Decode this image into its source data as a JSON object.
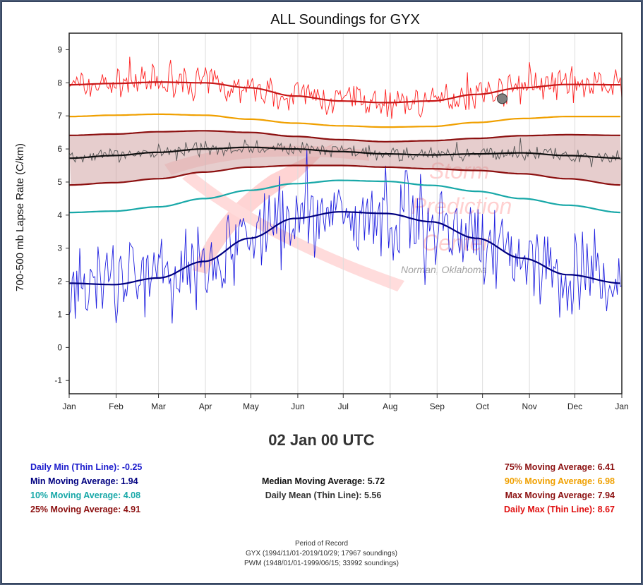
{
  "chart_data": {
    "type": "line",
    "title": "ALL Soundings for GYX",
    "ylabel": "700-500 mb Lapse Rate (C/km)",
    "xlabel": "",
    "ylim": [
      -1.4,
      9.5
    ],
    "yticks": [
      "9",
      "8",
      "7",
      "6",
      "5",
      "4",
      "3",
      "2",
      "1",
      "0",
      "-1"
    ],
    "xticks": [
      "Jan",
      "Feb",
      "Mar",
      "Apr",
      "May",
      "Jun",
      "Jul",
      "Aug",
      "Sep",
      "Oct",
      "Nov",
      "Dec",
      "Jan"
    ],
    "grid": "vertical",
    "x_units": "day of year",
    "series": [
      {
        "name": "Max Moving Average",
        "color": "#c81818",
        "x": [
          1,
          30,
          60,
          90,
          120,
          150,
          180,
          210,
          240,
          270,
          300,
          330,
          366
        ],
        "y": [
          7.94,
          7.98,
          8.02,
          8.0,
          7.85,
          7.6,
          7.45,
          7.4,
          7.45,
          7.65,
          7.85,
          7.95,
          7.94
        ]
      },
      {
        "name": "90% Moving Average",
        "color": "#f0a000",
        "x": [
          1,
          30,
          60,
          90,
          120,
          150,
          180,
          210,
          240,
          270,
          300,
          330,
          366
        ],
        "y": [
          6.98,
          7.02,
          7.05,
          7.02,
          6.9,
          6.78,
          6.7,
          6.66,
          6.68,
          6.8,
          6.92,
          6.98,
          6.98
        ]
      },
      {
        "name": "75% Moving Average",
        "color": "#8c1010",
        "x": [
          1,
          30,
          60,
          90,
          120,
          150,
          180,
          210,
          240,
          270,
          300,
          330,
          366
        ],
        "y": [
          6.41,
          6.45,
          6.52,
          6.55,
          6.5,
          6.38,
          6.28,
          6.22,
          6.25,
          6.32,
          6.4,
          6.43,
          6.41
        ]
      },
      {
        "name": "Median Moving Average",
        "color": "#111111",
        "x": [
          1,
          30,
          60,
          90,
          120,
          150,
          180,
          210,
          240,
          270,
          300,
          330,
          366
        ],
        "y": [
          5.72,
          5.8,
          5.9,
          6.0,
          6.05,
          6.0,
          5.92,
          5.85,
          5.82,
          5.85,
          5.88,
          5.8,
          5.72
        ]
      },
      {
        "name": "25% Moving Average",
        "color": "#8c1010",
        "x": [
          1,
          30,
          60,
          90,
          120,
          150,
          180,
          210,
          240,
          270,
          300,
          330,
          366
        ],
        "y": [
          4.91,
          4.98,
          5.1,
          5.3,
          5.45,
          5.5,
          5.5,
          5.45,
          5.4,
          5.35,
          5.25,
          5.1,
          4.91
        ]
      },
      {
        "name": "10% Moving Average",
        "color": "#18a8a8",
        "x": [
          1,
          30,
          60,
          90,
          120,
          150,
          180,
          210,
          240,
          270,
          300,
          330,
          366
        ],
        "y": [
          4.08,
          4.12,
          4.25,
          4.5,
          4.75,
          4.95,
          5.05,
          5.02,
          4.9,
          4.72,
          4.5,
          4.3,
          4.08
        ]
      },
      {
        "name": "Min Moving Average",
        "color": "#000080",
        "x": [
          1,
          30,
          60,
          90,
          120,
          150,
          180,
          210,
          240,
          270,
          300,
          330,
          366
        ],
        "y": [
          1.94,
          1.9,
          2.1,
          2.6,
          3.3,
          3.9,
          4.1,
          4.05,
          3.8,
          3.3,
          2.7,
          2.2,
          1.94
        ]
      }
    ],
    "noisy_series": [
      {
        "name": "Daily Max (Thin Line)",
        "color": "#ff2020",
        "base_series": 0,
        "amplitude": 0.4
      },
      {
        "name": "Daily Mean (Thin Line)",
        "color": "#555555",
        "base_series": 3,
        "amplitude": 0.18
      },
      {
        "name": "Daily Min (Thin Line)",
        "color": "#2020e0",
        "base_series": 6,
        "amplitude": 1.1
      }
    ],
    "marker": {
      "x": 287,
      "y": 7.52,
      "color": "#808080"
    }
  },
  "watermark": {
    "line1": "Storm",
    "line2": "Prediction",
    "line3": "Center",
    "line4": "Norman, Oklahoma"
  },
  "date_label": "02 Jan 00 UTC",
  "stats": {
    "daily_min": "Daily Min (Thin Line): -0.25",
    "min_ma": "Min Moving Average: 1.94",
    "p10_ma": "10% Moving Average: 4.08",
    "p25_ma": "25% Moving Average: 4.91",
    "median_ma": "Median Moving Average: 5.72",
    "daily_mean": "Daily Mean (Thin Line): 5.56",
    "p75_ma": "75% Moving Average: 6.41",
    "p90_ma": "90% Moving Average: 6.98",
    "max_ma": "Max Moving Average: 7.94",
    "daily_max": "Daily Max (Thin Line): 8.67"
  },
  "stat_colors": {
    "daily_min": "#1a1acc",
    "min_ma": "#000080",
    "p10_ma": "#18a8a8",
    "p25_ma": "#8c1010",
    "median_ma": "#111111",
    "daily_mean": "#333333",
    "p75_ma": "#8c1010",
    "p90_ma": "#f0a000",
    "max_ma": "#8c1010",
    "daily_max": "#e01010"
  },
  "period": {
    "heading": "Period of Record",
    "line1": "GYX (1994/11/01-2019/10/29; 17967 soundings)",
    "line2": "PWM (1948/01/01-1999/06/15; 33992 soundings)"
  }
}
